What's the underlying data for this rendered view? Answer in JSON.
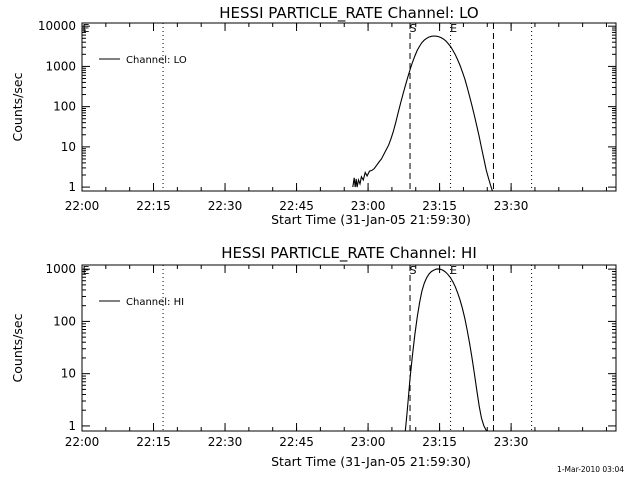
{
  "footer": {
    "timestamp": "1-Mar-2010 03:04"
  },
  "chart_data": [
    {
      "type": "line",
      "title": "HESSI PARTICLE_RATE Channel: LO",
      "xlabel": "Start Time (31-Jan-05 21:59:30)",
      "ylabel": "Counts/sec",
      "yscale": "log",
      "xlim": [
        0,
        112
      ],
      "ylim": [
        0.8,
        12000
      ],
      "x_ticks": [
        {
          "x": 0,
          "label": "22:00"
        },
        {
          "x": 15,
          "label": "22:15"
        },
        {
          "x": 30,
          "label": "22:30"
        },
        {
          "x": 45,
          "label": "22:45"
        },
        {
          "x": 60,
          "label": "23:00"
        },
        {
          "x": 75,
          "label": "23:15"
        },
        {
          "x": 90,
          "label": "23:30"
        }
      ],
      "y_ticks": [
        {
          "y": 1,
          "label": "1"
        },
        {
          "y": 10,
          "label": "10"
        },
        {
          "y": 100,
          "label": "100"
        },
        {
          "y": 1000,
          "label": "1000"
        },
        {
          "y": 10000,
          "label": "10000"
        }
      ],
      "legend": {
        "position": "top-left",
        "entries": [
          "Channel: LO"
        ]
      },
      "vlines": [
        {
          "x": 17,
          "style": "dotted"
        },
        {
          "x": 68.8,
          "style": "dashed",
          "label": "S"
        },
        {
          "x": 77.3,
          "style": "dotted",
          "label": "E"
        },
        {
          "x": 86.3,
          "style": "dashed"
        },
        {
          "x": 94.3,
          "style": "dotted"
        }
      ],
      "corner_label": "E",
      "series": [
        {
          "name": "Channel: LO",
          "x": [
            56.8,
            57.1,
            57.3,
            57.5,
            57.7,
            58.0,
            58.3,
            58.6,
            59.0,
            59.4,
            59.8,
            60.3,
            60.8,
            61.3,
            61.8,
            62.3,
            62.8,
            63.3,
            63.8,
            64.3,
            64.8,
            65.3,
            65.8,
            66.3,
            66.8,
            67.3,
            67.8,
            68.3,
            68.8,
            69.3,
            69.8,
            70.3,
            70.8,
            71.3,
            71.8,
            72.3,
            72.8,
            73.3,
            73.8,
            74.3,
            74.8,
            75.3,
            75.8,
            76.3,
            76.8,
            77.3,
            77.8,
            78.3,
            78.8,
            79.3,
            79.8,
            80.3,
            80.8,
            81.3,
            81.8,
            82.3,
            82.8,
            83.3,
            83.8,
            84.3,
            84.8,
            85.3,
            85.8,
            86.1
          ],
          "y": [
            1.0,
            1.7,
            1.0,
            1.6,
            1.0,
            1.5,
            1.2,
            1.8,
            1.5,
            2.3,
            1.9,
            2.5,
            2.6,
            2.9,
            3.5,
            4.2,
            5.0,
            6.5,
            8.5,
            11,
            16,
            24,
            40,
            70,
            120,
            200,
            330,
            520,
            820,
            1250,
            1800,
            2500,
            3200,
            3900,
            4500,
            5000,
            5400,
            5600,
            5700,
            5650,
            5500,
            5200,
            4800,
            4300,
            3700,
            3100,
            2500,
            1950,
            1450,
            1050,
            720,
            480,
            300,
            180,
            105,
            60,
            33,
            18,
            9.5,
            5,
            2.6,
            1.6,
            1.0,
            0.8
          ]
        }
      ]
    },
    {
      "type": "line",
      "title": "HESSI PARTICLE_RATE Channel: HI",
      "xlabel": "Start Time (31-Jan-05 21:59:30)",
      "ylabel": "Counts/sec",
      "yscale": "log",
      "xlim": [
        0,
        112
      ],
      "ylim": [
        0.8,
        1200
      ],
      "x_ticks": [
        {
          "x": 0,
          "label": "22:00"
        },
        {
          "x": 15,
          "label": "22:15"
        },
        {
          "x": 30,
          "label": "22:30"
        },
        {
          "x": 45,
          "label": "22:45"
        },
        {
          "x": 60,
          "label": "23:00"
        },
        {
          "x": 75,
          "label": "23:15"
        },
        {
          "x": 90,
          "label": "23:30"
        }
      ],
      "y_ticks": [
        {
          "y": 1,
          "label": "1"
        },
        {
          "y": 10,
          "label": "10"
        },
        {
          "y": 100,
          "label": "100"
        },
        {
          "y": 1000,
          "label": "1000"
        }
      ],
      "legend": {
        "position": "top-left",
        "entries": [
          "Channel: HI"
        ]
      },
      "vlines": [
        {
          "x": 17,
          "style": "dotted"
        },
        {
          "x": 68.8,
          "style": "dashed",
          "label": "S"
        },
        {
          "x": 77.3,
          "style": "dotted",
          "label": "E"
        },
        {
          "x": 86.3,
          "style": "dashed"
        },
        {
          "x": 94.3,
          "style": "dotted"
        }
      ],
      "corner_label": "E",
      "series": [
        {
          "name": "Channel: HI",
          "x": [
            67.8,
            68.1,
            68.4,
            68.8,
            69.3,
            69.8,
            70.3,
            70.8,
            71.3,
            71.8,
            72.3,
            72.8,
            73.3,
            73.8,
            74.3,
            74.8,
            75.3,
            75.8,
            76.3,
            76.8,
            77.3,
            77.8,
            78.3,
            78.8,
            79.3,
            79.8,
            80.3,
            80.8,
            81.3,
            81.8,
            82.3,
            82.8,
            83.3,
            83.8,
            84.3,
            84.7,
            85.0
          ],
          "y": [
            0.8,
            1.5,
            3,
            8,
            22,
            55,
            120,
            230,
            380,
            540,
            690,
            810,
            900,
            960,
            1000,
            1010,
            990,
            940,
            870,
            780,
            680,
            570,
            460,
            350,
            255,
            175,
            112,
            68,
            38,
            20,
            10,
            4.8,
            2.4,
            1.4,
            1.0,
            0.85,
            0.8
          ]
        }
      ]
    }
  ]
}
